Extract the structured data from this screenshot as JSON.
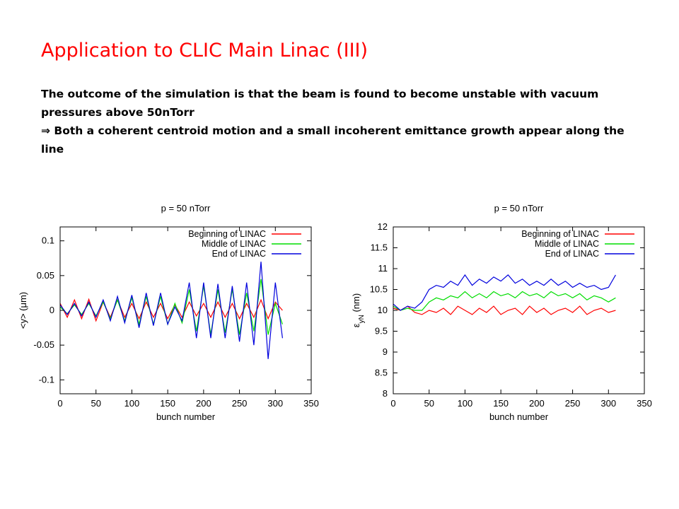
{
  "slide": {
    "title": "Application to CLIC Main Linac (III)",
    "line1": "The outcome of the simulation is that the beam is found to become unstable with vacuum pressures above 50nTorr",
    "line2": "⇒ Both a coherent centroid motion and a small incoherent emittance growth appear along the line"
  },
  "chart_data": [
    {
      "type": "line",
      "title": "p = 50 nTorr",
      "xlabel": "bunch number",
      "ylabel": "<y> (μm)",
      "xlim": [
        0,
        350
      ],
      "ylim": [
        -0.12,
        0.12
      ],
      "xticks": [
        0,
        50,
        100,
        150,
        200,
        250,
        300,
        350
      ],
      "yticks": [
        -0.1,
        -0.05,
        0,
        0.05,
        0.1
      ],
      "ytick_labels": [
        "-0.1",
        "-0.05",
        "0",
        "0.05",
        "0.1"
      ],
      "legend_position": "top-right",
      "grid": false,
      "series": [
        {
          "name": "Beginning of LINAC",
          "color": "#ff0000",
          "x": [
            0,
            10,
            20,
            30,
            40,
            50,
            60,
            70,
            80,
            90,
            100,
            110,
            120,
            130,
            140,
            150,
            160,
            170,
            180,
            190,
            200,
            210,
            220,
            230,
            240,
            250,
            260,
            270,
            280,
            290,
            300,
            310
          ],
          "y": [
            0.01,
            -0.01,
            0.015,
            -0.012,
            0.016,
            -0.015,
            0.012,
            -0.01,
            0.015,
            -0.01,
            0.01,
            -0.012,
            0.012,
            -0.01,
            0.01,
            -0.012,
            0.008,
            -0.01,
            0.012,
            -0.008,
            0.01,
            -0.01,
            0.012,
            -0.01,
            0.01,
            -0.012,
            0.01,
            -0.01,
            0.015,
            -0.012,
            0.012,
            0.0
          ]
        },
        {
          "name": "Middle of LINAC",
          "color": "#00dd00",
          "x": [
            0,
            10,
            20,
            30,
            40,
            50,
            60,
            70,
            80,
            90,
            100,
            110,
            120,
            130,
            140,
            150,
            160,
            170,
            180,
            190,
            200,
            210,
            220,
            230,
            240,
            250,
            260,
            270,
            280,
            290,
            300,
            310
          ],
          "y": [
            0.005,
            -0.005,
            0.008,
            -0.006,
            0.01,
            -0.008,
            0.012,
            -0.012,
            0.015,
            -0.015,
            0.018,
            -0.02,
            0.02,
            -0.02,
            0.02,
            -0.02,
            0.01,
            -0.018,
            0.03,
            -0.03,
            0.035,
            -0.035,
            0.03,
            -0.032,
            0.03,
            -0.035,
            0.025,
            -0.03,
            0.045,
            -0.035,
            0.01,
            -0.02
          ]
        },
        {
          "name": "End of LINAC",
          "color": "#0000dd",
          "x": [
            0,
            10,
            20,
            30,
            40,
            50,
            60,
            70,
            80,
            90,
            100,
            110,
            120,
            130,
            140,
            150,
            160,
            170,
            180,
            190,
            200,
            210,
            220,
            230,
            240,
            250,
            260,
            270,
            280,
            290,
            300,
            310
          ],
          "y": [
            0.008,
            -0.006,
            0.01,
            -0.008,
            0.012,
            -0.01,
            0.015,
            -0.015,
            0.02,
            -0.018,
            0.022,
            -0.025,
            0.025,
            -0.022,
            0.025,
            -0.02,
            0.005,
            -0.015,
            0.04,
            -0.04,
            0.04,
            -0.04,
            0.038,
            -0.04,
            0.035,
            -0.045,
            0.04,
            -0.05,
            0.07,
            -0.07,
            0.04,
            -0.04
          ]
        }
      ]
    },
    {
      "type": "line",
      "title": "p = 50 nTorr",
      "xlabel": "bunch number",
      "ylabel": "ε",
      "ylabel_sub": "yN",
      "ylabel_unit": " (nm)",
      "xlim": [
        0,
        350
      ],
      "ylim": [
        8,
        12
      ],
      "xticks": [
        0,
        50,
        100,
        150,
        200,
        250,
        300,
        350
      ],
      "yticks": [
        8,
        8.5,
        9,
        9.5,
        10,
        10.5,
        11,
        11.5,
        12
      ],
      "ytick_labels": [
        "8",
        "8.5",
        "9",
        "9.5",
        "10",
        "10.5",
        "11",
        "11.5",
        "12"
      ],
      "legend_position": "top-right",
      "grid": false,
      "series": [
        {
          "name": "Beginning of LINAC",
          "color": "#ff0000",
          "x": [
            0,
            10,
            20,
            30,
            40,
            50,
            60,
            70,
            80,
            90,
            100,
            110,
            120,
            130,
            140,
            150,
            160,
            170,
            180,
            190,
            200,
            210,
            220,
            230,
            240,
            250,
            260,
            270,
            280,
            290,
            300,
            310
          ],
          "y": [
            10.05,
            10.0,
            10.1,
            9.95,
            9.9,
            10.0,
            9.95,
            10.05,
            9.9,
            10.1,
            10.0,
            9.9,
            10.05,
            9.95,
            10.1,
            9.9,
            10.0,
            10.05,
            9.9,
            10.1,
            9.95,
            10.05,
            9.9,
            10.0,
            10.05,
            9.95,
            10.1,
            9.9,
            10.0,
            10.05,
            9.95,
            10.0
          ]
        },
        {
          "name": "Middle of LINAC",
          "color": "#00dd00",
          "x": [
            0,
            10,
            20,
            30,
            40,
            50,
            60,
            70,
            80,
            90,
            100,
            110,
            120,
            130,
            140,
            150,
            160,
            170,
            180,
            190,
            200,
            210,
            220,
            230,
            240,
            250,
            260,
            270,
            280,
            290,
            300,
            310
          ],
          "y": [
            10.1,
            10.0,
            10.05,
            10.0,
            10.0,
            10.2,
            10.3,
            10.25,
            10.35,
            10.3,
            10.45,
            10.3,
            10.4,
            10.3,
            10.45,
            10.35,
            10.4,
            10.3,
            10.45,
            10.35,
            10.4,
            10.3,
            10.45,
            10.35,
            10.4,
            10.3,
            10.4,
            10.25,
            10.35,
            10.3,
            10.2,
            10.3
          ]
        },
        {
          "name": "End of LINAC",
          "color": "#0000dd",
          "x": [
            0,
            10,
            20,
            30,
            40,
            50,
            60,
            70,
            80,
            90,
            100,
            110,
            120,
            130,
            140,
            150,
            160,
            170,
            180,
            190,
            200,
            210,
            220,
            230,
            240,
            250,
            260,
            270,
            280,
            290,
            300,
            310
          ],
          "y": [
            10.15,
            10.0,
            10.1,
            10.05,
            10.2,
            10.5,
            10.6,
            10.55,
            10.7,
            10.6,
            10.85,
            10.6,
            10.75,
            10.65,
            10.8,
            10.7,
            10.85,
            10.65,
            10.75,
            10.6,
            10.7,
            10.6,
            10.75,
            10.6,
            10.7,
            10.55,
            10.65,
            10.55,
            10.6,
            10.5,
            10.55,
            10.85
          ]
        }
      ]
    }
  ]
}
